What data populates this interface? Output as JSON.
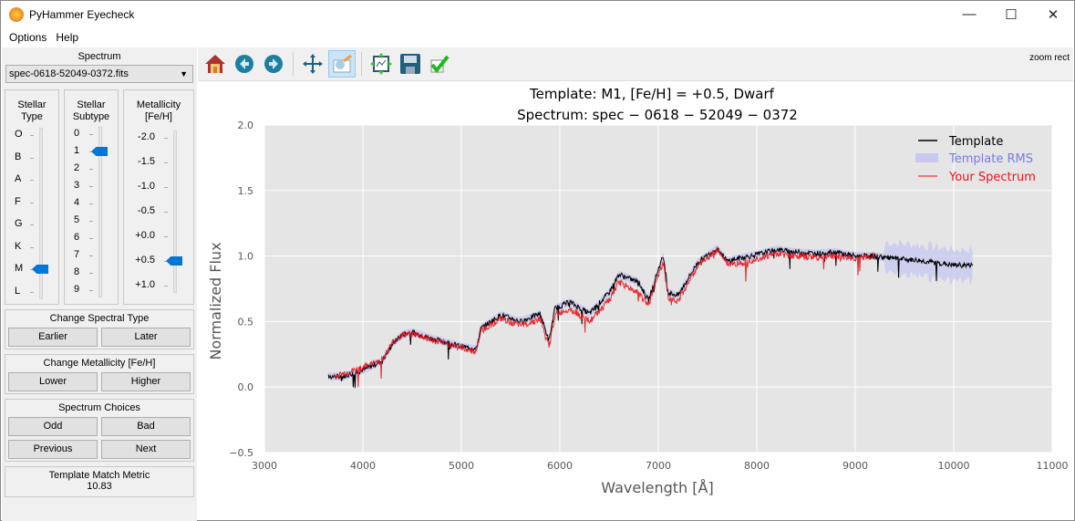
{
  "window": {
    "title": "PyHammer Eyecheck",
    "minimize": "—",
    "maximize": "☐",
    "close": "✕"
  },
  "menu": [
    "Options",
    "Help"
  ],
  "left": {
    "spectrum_label": "Spectrum",
    "spectrum_file": "spec-0618-52049-0372.fits",
    "stellar_type": {
      "title1": "Stellar",
      "title2": "Type",
      "options": [
        "O",
        "B",
        "A",
        "F",
        "G",
        "K",
        "M",
        "L"
      ],
      "selected_index": 6
    },
    "stellar_subtype": {
      "title1": "Stellar",
      "title2": "Subtype",
      "options": [
        "0",
        "1",
        "2",
        "3",
        "4",
        "5",
        "6",
        "7",
        "8",
        "9"
      ],
      "selected_index": 1
    },
    "metallicity": {
      "title1": "Metallicity",
      "title2": "[Fe/H]",
      "options": [
        "-2.0",
        "-1.5",
        "-1.0",
        "-0.5",
        "+0.0",
        "+0.5",
        "+1.0"
      ],
      "selected_index": 5
    },
    "change_type": {
      "label": "Change Spectral Type",
      "earlier": "Earlier",
      "later": "Later"
    },
    "change_met": {
      "label": "Change Metallicity [Fe/H]",
      "lower": "Lower",
      "higher": "Higher"
    },
    "choices": {
      "label": "Spectrum Choices",
      "odd": "Odd",
      "bad": "Bad",
      "previous": "Previous",
      "next": "Next"
    },
    "metric": {
      "label": "Template Match Metric",
      "value": "10.83"
    }
  },
  "toolbar": {
    "mode": "zoom rect"
  },
  "colors": {
    "template": "#000000",
    "rms": "#c8c8f0",
    "spectrum": "#e8141c",
    "plot_bg": "#e5e5e5",
    "accent": "#0078d7"
  },
  "chart_data": {
    "type": "line",
    "title_line1": "Template: M1, [Fe/H] = +0.5, Dwarf",
    "title_line2": "Spectrum: spec − 0618 − 52049 − 0372",
    "xlabel": "Wavelength [Å]",
    "ylabel": "Normalized Flux",
    "xlim": [
      3000,
      11000
    ],
    "ylim": [
      -0.5,
      2.0
    ],
    "xticks": [
      "3000",
      "4000",
      "5000",
      "6000",
      "7000",
      "8000",
      "9000",
      "10000",
      "11000"
    ],
    "yticks": [
      "−0.5",
      "0.0",
      "0.5",
      "1.0",
      "1.5",
      "2.0"
    ],
    "grid": true,
    "legend_position": "top-right",
    "legend": [
      "Template",
      "Template RMS",
      "Your Spectrum"
    ],
    "series": [
      {
        "name": "Template",
        "x": [
          3650,
          3800,
          4000,
          4200,
          4300,
          4400,
          4500,
          4700,
          4800,
          5000,
          5150,
          5200,
          5400,
          5600,
          5800,
          5890,
          5950,
          6100,
          6300,
          6500,
          6600,
          6800,
          6900,
          7000,
          7050,
          7100,
          7200,
          7400,
          7600,
          7700,
          7800,
          8000,
          8200,
          8400,
          8600,
          8800,
          9000,
          9200,
          9400,
          9600,
          9800,
          10000,
          10200
        ],
        "y": [
          0.08,
          0.08,
          0.13,
          0.2,
          0.33,
          0.4,
          0.42,
          0.37,
          0.35,
          0.31,
          0.29,
          0.45,
          0.55,
          0.5,
          0.56,
          0.35,
          0.6,
          0.65,
          0.56,
          0.72,
          0.86,
          0.8,
          0.66,
          0.9,
          1.0,
          0.72,
          0.7,
          0.95,
          1.06,
          0.96,
          0.98,
          1.01,
          1.05,
          1.03,
          1.02,
          1.03,
          1.0,
          1.0,
          0.98,
          0.97,
          0.95,
          0.93,
          0.93
        ]
      },
      {
        "name": "Your Spectrum",
        "x": [
          3700,
          3800,
          4000,
          4200,
          4300,
          4400,
          4500,
          4700,
          4800,
          5000,
          5150,
          5200,
          5400,
          5600,
          5800,
          5890,
          5950,
          6100,
          6300,
          6500,
          6600,
          6800,
          6900,
          7000,
          7050,
          7100,
          7200,
          7400,
          7600,
          7700,
          7800,
          8000,
          8200,
          8400,
          8600,
          8800,
          9000,
          9200
        ],
        "y": [
          0.08,
          0.1,
          0.15,
          0.21,
          0.34,
          0.4,
          0.41,
          0.36,
          0.34,
          0.3,
          0.27,
          0.43,
          0.52,
          0.47,
          0.52,
          0.3,
          0.55,
          0.6,
          0.5,
          0.66,
          0.8,
          0.72,
          0.62,
          0.85,
          0.95,
          0.68,
          0.66,
          0.92,
          1.05,
          0.94,
          0.94,
          0.98,
          1.02,
          1.0,
          0.99,
          1.0,
          0.98,
          1.0
        ]
      }
    ]
  }
}
